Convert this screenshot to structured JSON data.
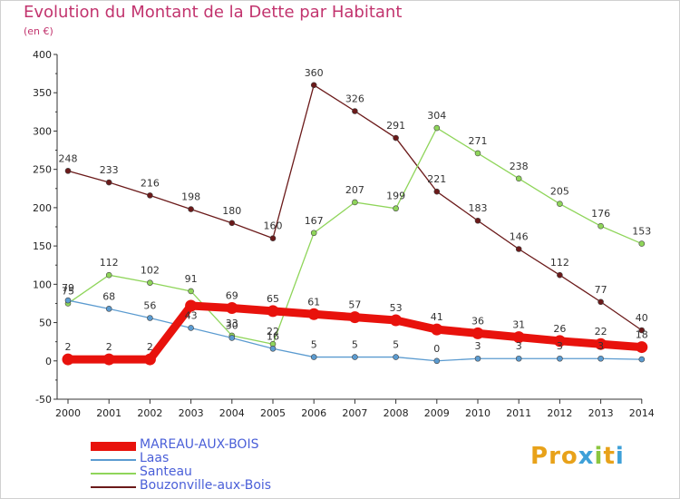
{
  "title": "Evolution du Montant de la Dette par Habitant",
  "subtitle": "(en €)",
  "logo": {
    "text": "Proxiti",
    "colors": [
      "#e8a21a",
      "#e8a21a",
      "#e8a21a",
      "#3ea0d8",
      "#8cc63f",
      "#e8a21a",
      "#3ea0d8"
    ]
  },
  "chart_data": {
    "type": "line",
    "x": [
      "2000",
      "2001",
      "2002",
      "2003",
      "2004",
      "2005",
      "2006",
      "2007",
      "2008",
      "2009",
      "2010",
      "2011",
      "2012",
      "2013",
      "2014"
    ],
    "ylim": [
      -50,
      400
    ],
    "yticks": [
      -50,
      0,
      50,
      100,
      150,
      200,
      250,
      300,
      350,
      400
    ],
    "grid": false,
    "legend_position": "bottom-left",
    "series": [
      {
        "name": "MAREAU-AUX-BOIS",
        "color": "#e8120c",
        "highlight": true,
        "values": [
          2,
          2,
          2,
          72,
          69,
          65,
          61,
          57,
          53,
          41,
          36,
          31,
          26,
          22,
          18
        ],
        "labels": [
          "2",
          "2",
          "2",
          "",
          "69",
          "65",
          "61",
          "57",
          "53",
          "41",
          "36",
          "31",
          "26",
          "22",
          "18"
        ]
      },
      {
        "name": "Laas",
        "color": "#5b9bd0",
        "values": [
          79,
          68,
          56,
          43,
          30,
          16,
          5,
          5,
          5,
          0,
          3,
          3,
          3,
          3,
          2
        ],
        "labels": [
          "79",
          "68",
          "56",
          "43",
          "30",
          "16",
          "5",
          "5",
          "5",
          "0",
          "3",
          "3",
          "3",
          "3",
          ""
        ]
      },
      {
        "name": "Santeau",
        "color": "#8fd55a",
        "values": [
          75,
          112,
          102,
          91,
          33,
          22,
          167,
          207,
          199,
          304,
          271,
          238,
          205,
          176,
          153
        ],
        "labels": [
          "75",
          "112",
          "102",
          "91",
          "33",
          "22",
          "167",
          "207",
          "199",
          "304",
          "271",
          "238",
          "205",
          "176",
          "153"
        ]
      },
      {
        "name": "Bouzonville-aux-Bois",
        "color": "#6b1a1a",
        "values": [
          248,
          233,
          216,
          198,
          180,
          160,
          360,
          326,
          291,
          221,
          183,
          146,
          112,
          77,
          40
        ],
        "labels": [
          "248",
          "233",
          "216",
          "198",
          "180",
          "160",
          "360",
          "326",
          "291",
          "221",
          "183",
          "146",
          "112",
          "77",
          "40"
        ]
      }
    ]
  }
}
